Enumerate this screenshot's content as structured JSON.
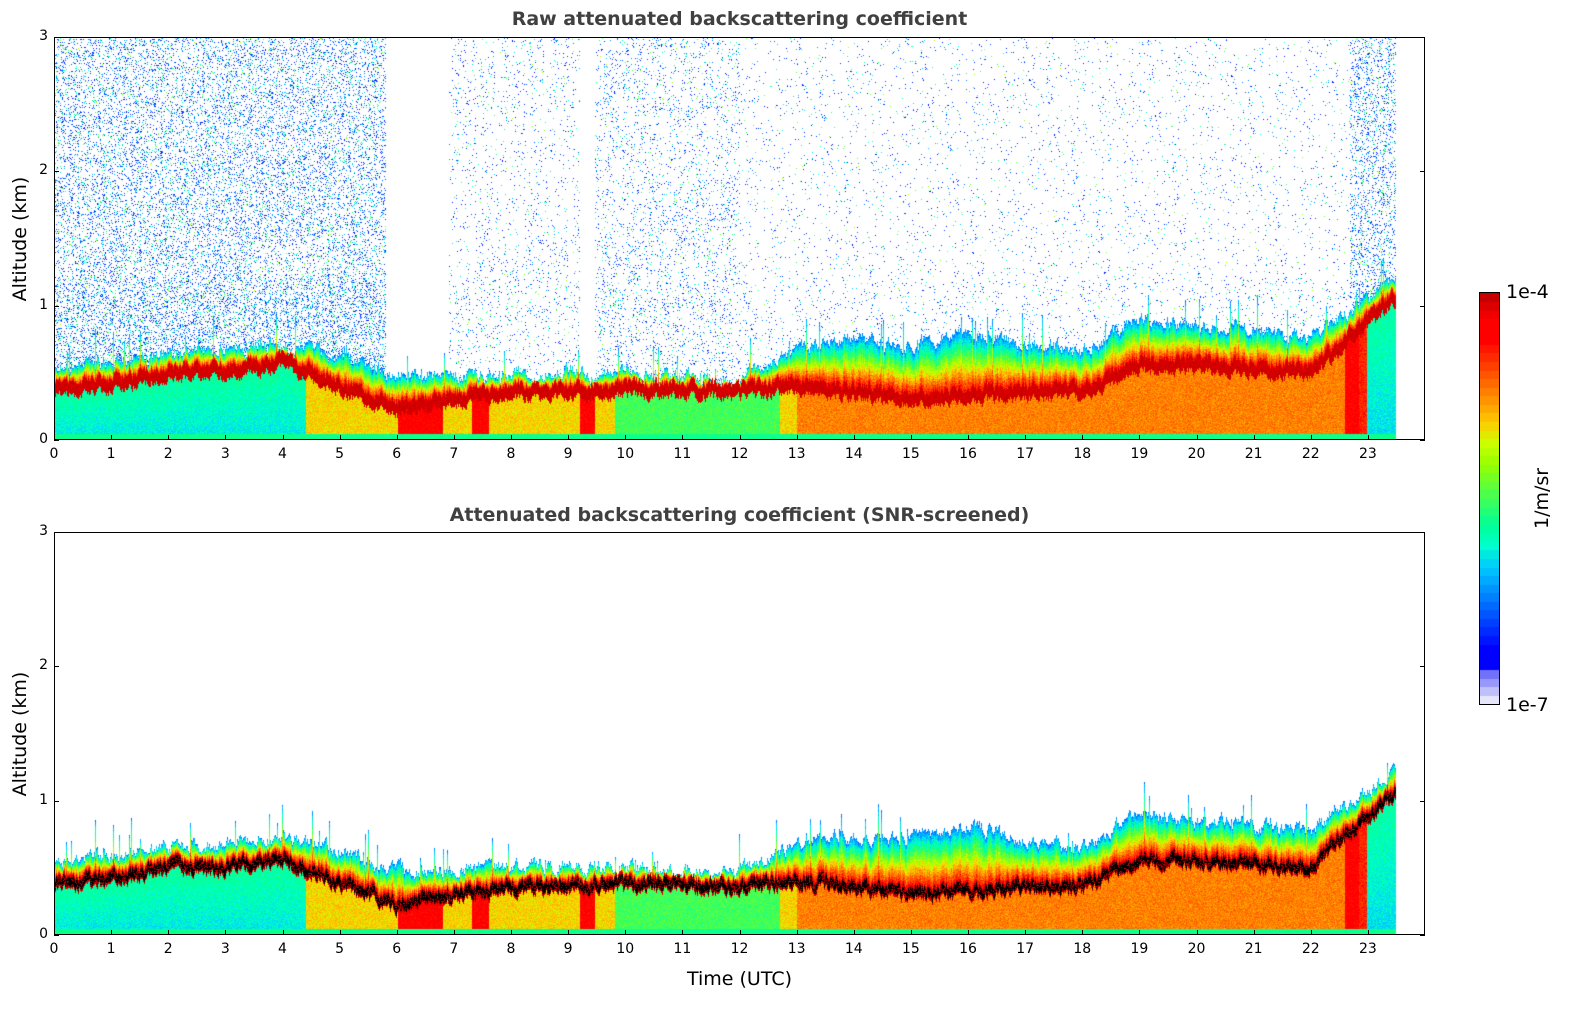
{
  "chart_data": [
    {
      "type": "heatmap",
      "title": "Raw attenuated backscattering coefficient",
      "xlabel": "",
      "ylabel": "Altitude (km)",
      "xlim": [
        0,
        24
      ],
      "ylim": [
        0,
        3
      ],
      "xticks": [
        "0",
        "1",
        "2",
        "3",
        "4",
        "5",
        "6",
        "7",
        "8",
        "9",
        "10",
        "11",
        "12",
        "13",
        "14",
        "15",
        "16",
        "17",
        "18",
        "19",
        "20",
        "21",
        "22",
        "23"
      ],
      "yticks": [
        "0",
        "1",
        "2",
        "3"
      ],
      "screened": false
    },
    {
      "type": "heatmap",
      "title": "Attenuated backscattering coefficient (SNR-screened)",
      "xlabel": "Time (UTC)",
      "ylabel": "Altitude (km)",
      "xlim": [
        0,
        24
      ],
      "ylim": [
        0,
        3
      ],
      "xticks": [
        "0",
        "1",
        "2",
        "3",
        "4",
        "5",
        "6",
        "7",
        "8",
        "9",
        "10",
        "11",
        "12",
        "13",
        "14",
        "15",
        "16",
        "17",
        "18",
        "19",
        "20",
        "21",
        "22",
        "23"
      ],
      "yticks": [
        "0",
        "1",
        "2",
        "3"
      ],
      "screened": true
    }
  ],
  "series": {
    "hours": [
      0,
      1,
      2,
      3,
      4,
      5,
      6,
      7,
      8,
      9,
      10,
      11,
      12,
      13,
      14,
      15,
      16,
      17,
      18,
      19,
      20,
      21,
      22,
      23
    ],
    "aerosol_layer_top_km": [
      0.55,
      0.57,
      0.65,
      0.68,
      0.72,
      0.62,
      0.47,
      0.47,
      0.5,
      0.5,
      0.5,
      0.47,
      0.45,
      0.68,
      0.75,
      0.7,
      0.82,
      0.7,
      0.65,
      0.9,
      0.85,
      0.82,
      0.75,
      1.05
    ],
    "peak_backscatter_altitude_km": [
      0.38,
      0.4,
      0.5,
      0.5,
      0.57,
      0.38,
      0.22,
      0.3,
      0.35,
      0.35,
      0.37,
      0.37,
      0.35,
      0.4,
      0.35,
      0.3,
      0.32,
      0.35,
      0.35,
      0.55,
      0.55,
      0.52,
      0.5,
      0.88
    ],
    "data_end_hour": 23.5
  },
  "colorbar": {
    "min_label": "1e-7",
    "max_label": "1e-4",
    "label": "1/m/sr",
    "scale": "log",
    "min": 1e-07,
    "max": 0.0001
  }
}
